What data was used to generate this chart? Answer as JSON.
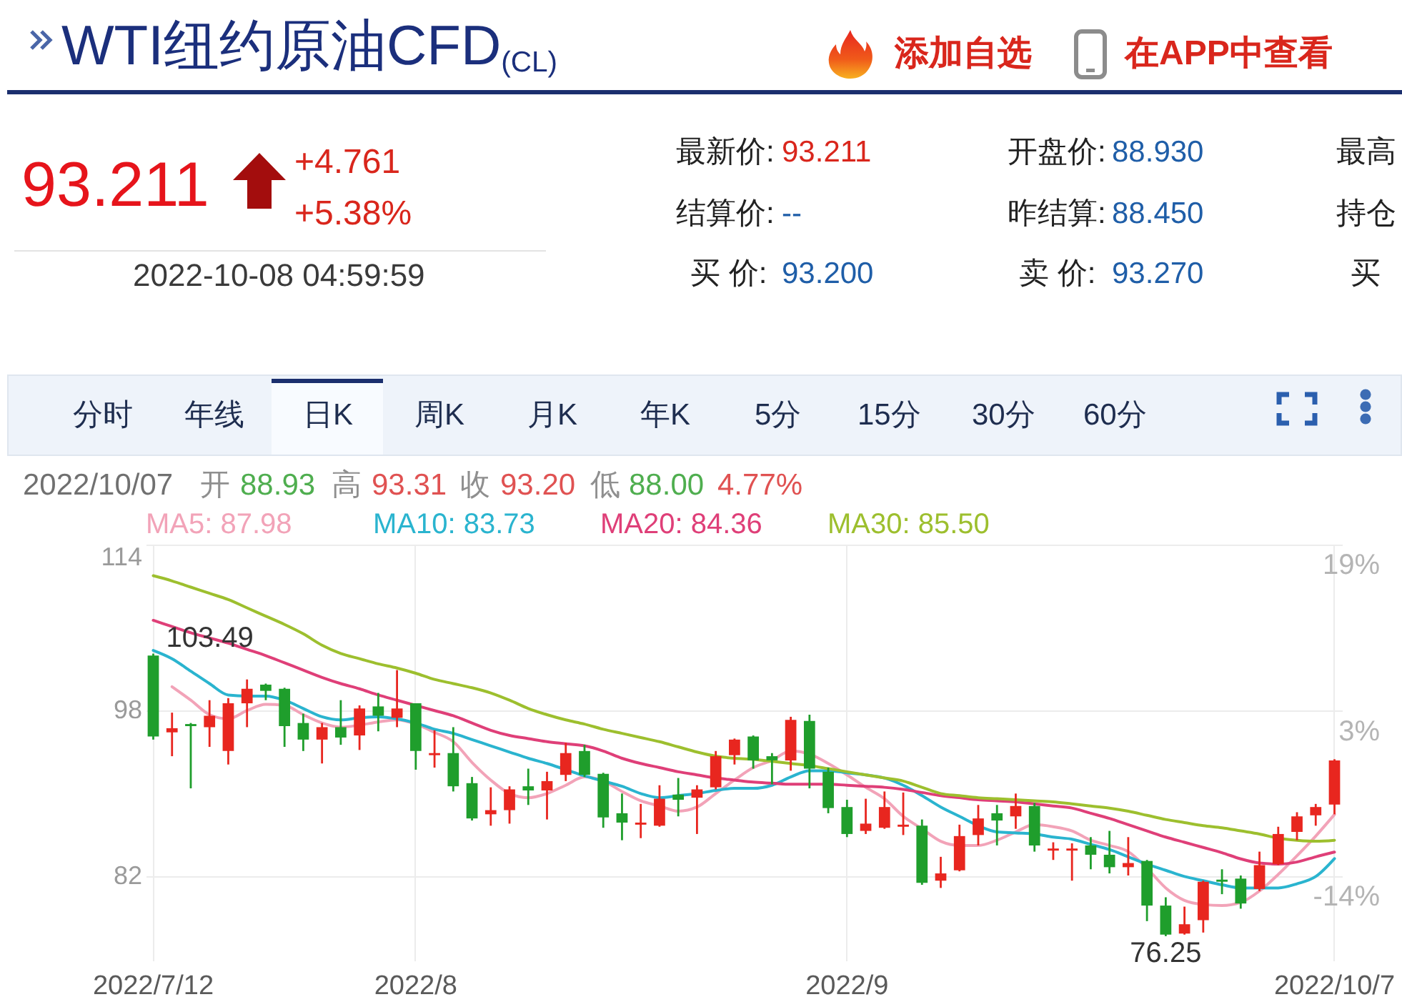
{
  "chart_data": {
    "type": "candlestick",
    "title": "WTI纽约原油CFD$_{(CL)}$",
    "annotations": [
      "93.211",
      "+4.761",
      "+5.38%",
      "2022-10-08 04:59:59",
      "最新价:",
      "93.211",
      "开盘价:",
      "88.930",
      "最高",
      "结算价:",
      "--",
      "昨结算:",
      "88.450",
      "持仓",
      "买 价:",
      "93.200",
      "卖 价:",
      "93.270",
      "买",
      "添加自选",
      "在APP中查看",
      "分时",
      "年线",
      "日K",
      "周K",
      "月K",
      "年K",
      "5分",
      "15分",
      "30分",
      "60分",
      "2022/10/07",
      "开",
      "88.93",
      "高",
      "93.31",
      "收",
      "93.20",
      "低",
      "88.00",
      "4.77%",
      {
        "text": "103.49",
        "x": "2022/7/12",
        "y": 103.49
      },
      {
        "text": "76.25",
        "y": 76.25
      }
    ],
    "categories": [
      "2022/7/12",
      null,
      null,
      null,
      null,
      null,
      null,
      null,
      null,
      null,
      null,
      null,
      null,
      null,
      "2022/8",
      null,
      null,
      null,
      null,
      null,
      null,
      null,
      null,
      null,
      null,
      null,
      null,
      null,
      null,
      null,
      null,
      null,
      null,
      null,
      null,
      null,
      null,
      "2022/9",
      null,
      null,
      null,
      null,
      null,
      null,
      null,
      null,
      null,
      null,
      null,
      null,
      null,
      null,
      null,
      null,
      null,
      null,
      null,
      null,
      null,
      null,
      null,
      null,
      null,
      "2022/10/7"
    ],
    "ohlc": [
      [
        103.3,
        103.49,
        95.2,
        95.5
      ],
      [
        95.9,
        97.8,
        93.6,
        96.3
      ],
      [
        96.7,
        96.8,
        90.5,
        96.5
      ],
      [
        96.4,
        99.0,
        94.5,
        97.5
      ],
      [
        94.1,
        99.2,
        92.8,
        98.7
      ],
      [
        98.7,
        101.0,
        96.4,
        100.1
      ],
      [
        100.5,
        100.6,
        99.0,
        99.9
      ],
      [
        100.1,
        100.2,
        94.5,
        96.5
      ],
      [
        96.8,
        97.7,
        94.1,
        95.2
      ],
      [
        95.2,
        96.8,
        92.9,
        96.4
      ],
      [
        96.4,
        99.0,
        94.7,
        95.4
      ],
      [
        95.6,
        98.5,
        94.2,
        98.2
      ],
      [
        98.4,
        99.7,
        96.0,
        97.5
      ],
      [
        97.3,
        101.9,
        96.4,
        98.2
      ],
      [
        98.7,
        98.7,
        92.3,
        94.1
      ],
      [
        93.7,
        96.1,
        92.5,
        93.9
      ],
      [
        93.9,
        96.4,
        90.2,
        90.7
      ],
      [
        91.0,
        91.6,
        87.4,
        87.6
      ],
      [
        88.0,
        90.6,
        86.9,
        88.4
      ],
      [
        88.4,
        90.7,
        87.1,
        90.4
      ],
      [
        90.7,
        92.4,
        88.9,
        90.3
      ],
      [
        90.3,
        92.1,
        87.5,
        91.2
      ],
      [
        91.8,
        94.9,
        91.2,
        93.9
      ],
      [
        94.1,
        94.7,
        91.6,
        91.8
      ],
      [
        91.9,
        92.0,
        86.7,
        87.7
      ],
      [
        88.1,
        90.0,
        85.5,
        87.2
      ],
      [
        87.0,
        89.0,
        85.7,
        87.2
      ],
      [
        86.9,
        90.8,
        86.8,
        89.5
      ],
      [
        89.9,
        91.5,
        87.8,
        89.4
      ],
      [
        89.6,
        90.8,
        86.1,
        90.4
      ],
      [
        90.6,
        94.1,
        90.4,
        93.6
      ],
      [
        93.7,
        95.3,
        92.8,
        95.2
      ],
      [
        95.5,
        95.6,
        92.4,
        93.2
      ],
      [
        93.6,
        93.9,
        90.9,
        93.2
      ],
      [
        93.2,
        97.4,
        92.2,
        97.1
      ],
      [
        97.0,
        97.6,
        90.5,
        92.4
      ],
      [
        92.1,
        92.5,
        88.1,
        88.6
      ],
      [
        88.7,
        89.4,
        85.8,
        86.1
      ],
      [
        86.4,
        89.5,
        86.1,
        87.1
      ],
      [
        86.7,
        90.2,
        86.6,
        88.7
      ],
      [
        86.8,
        90.1,
        86.0,
        87.0
      ],
      [
        86.9,
        87.5,
        81.2,
        81.4
      ],
      [
        81.6,
        83.9,
        80.9,
        82.3
      ],
      [
        82.6,
        87.0,
        82.5,
        85.9
      ],
      [
        86.0,
        88.9,
        85.0,
        87.6
      ],
      [
        88.1,
        88.9,
        85.0,
        87.4
      ],
      [
        87.8,
        90.0,
        86.6,
        88.8
      ],
      [
        88.8,
        89.1,
        84.4,
        85.0
      ],
      [
        84.5,
        85.3,
        83.6,
        84.7
      ],
      [
        84.5,
        85.2,
        81.6,
        84.7
      ],
      [
        85.0,
        85.8,
        82.7,
        84.1
      ],
      [
        84.1,
        86.4,
        82.3,
        82.9
      ],
      [
        82.9,
        85.8,
        82.1,
        83.3
      ],
      [
        83.5,
        83.6,
        77.7,
        79.2
      ],
      [
        79.2,
        80.0,
        76.25,
        76.4
      ],
      [
        76.5,
        79.1,
        76.4,
        77.4
      ],
      [
        77.8,
        81.6,
        76.6,
        81.5
      ],
      [
        81.7,
        82.7,
        80.3,
        81.5
      ],
      [
        81.8,
        82.1,
        78.9,
        79.4
      ],
      [
        80.8,
        84.4,
        80.6,
        83.1
      ],
      [
        83.2,
        86.8,
        83.1,
        86.1
      ],
      [
        86.3,
        88.2,
        85.5,
        87.8
      ],
      [
        87.9,
        89.0,
        86.9,
        88.7
      ],
      [
        88.93,
        93.31,
        88.0,
        93.2
      ]
    ],
    "colors": [
      "#1f9e2c",
      "#e8261f",
      "#1f9e2c",
      "#e8261f",
      "#e8261f",
      "#e8261f",
      "#1f9e2c",
      "#1f9e2c",
      "#1f9e2c",
      "#e8261f",
      "#1f9e2c",
      "#e8261f",
      "#1f9e2c",
      "#e8261f",
      "#1f9e2c",
      "#e8261f",
      "#1f9e2c",
      "#1f9e2c",
      "#e8261f",
      "#e8261f",
      "#1f9e2c",
      "#e8261f",
      "#e8261f",
      "#1f9e2c",
      "#1f9e2c",
      "#1f9e2c",
      "#e8261f",
      "#e8261f",
      "#1f9e2c",
      "#e8261f",
      "#e8261f",
      "#e8261f",
      "#1f9e2c",
      "#1f9e2c",
      "#e8261f",
      "#1f9e2c",
      "#1f9e2c",
      "#1f9e2c",
      "#e8261f",
      "#e8261f",
      "#e8261f",
      "#1f9e2c",
      "#e8261f",
      "#e8261f",
      "#e8261f",
      "#1f9e2c",
      "#e8261f",
      "#1f9e2c",
      "#e8261f",
      "#e8261f",
      "#1f9e2c",
      "#1f9e2c",
      "#e8261f",
      "#1f9e2c",
      "#1f9e2c",
      "#e8261f",
      "#e8261f",
      "#1f9e2c",
      "#1f9e2c",
      "#e8261f",
      "#e8261f",
      "#e8261f",
      "#e8261f",
      "#e8261f"
    ],
    "series": [
      {
        "name": "MA5: 87.98",
        "type": "line",
        "color": "#f2a3b8",
        "values": [
          null,
          100.3,
          99.0,
          97.6,
          97.2,
          98.0,
          98.6,
          98.5,
          97.6,
          96.8,
          96.4,
          96.6,
          96.9,
          97.1,
          96.7,
          95.9,
          95.0,
          93.0,
          91.3,
          90.0,
          89.6,
          90.0,
          90.8,
          91.6,
          91.2,
          90.2,
          89.3,
          88.8,
          88.3,
          88.7,
          90.0,
          91.3,
          92.5,
          93.2,
          94.1,
          93.8,
          92.9,
          91.8,
          90.6,
          89.5,
          87.8,
          86.6,
          85.4,
          85.0,
          85.0,
          85.5,
          86.3,
          87.0,
          86.8,
          86.4,
          85.5,
          85.0,
          84.4,
          82.8,
          80.9,
          79.7,
          79.3,
          79.2,
          79.5,
          80.6,
          82.2,
          84.0,
          85.9,
          87.98
        ]
      },
      {
        "name": "MA10: 83.73",
        "type": "line",
        "color": "#2ab4cf",
        "values": [
          103.8,
          103.0,
          101.8,
          100.6,
          99.5,
          99.4,
          99.4,
          99.0,
          98.2,
          97.4,
          97.1,
          97.3,
          97.4,
          97.2,
          96.8,
          96.2,
          95.8,
          95.2,
          94.6,
          94.0,
          93.4,
          92.9,
          92.3,
          91.7,
          91.2,
          90.7,
          90.0,
          89.6,
          89.8,
          90.0,
          90.3,
          90.5,
          90.5,
          90.8,
          91.6,
          92.2,
          92.2,
          92.0,
          91.8,
          91.5,
          90.8,
          89.8,
          88.7,
          87.8,
          86.9,
          86.3,
          86.2,
          86.1,
          85.8,
          85.6,
          85.1,
          84.6,
          83.9,
          83.2,
          82.6,
          82.0,
          81.6,
          81.2,
          80.9,
          80.9,
          80.9,
          81.3,
          82.0,
          83.73
        ]
      },
      {
        "name": "MA20: 84.36",
        "type": "line",
        "color": "#df3f78",
        "values": [
          106.7,
          106.1,
          105.5,
          105.0,
          104.5,
          103.9,
          103.3,
          102.6,
          101.9,
          101.2,
          100.6,
          100.1,
          99.5,
          99.0,
          98.5,
          98.0,
          97.5,
          96.8,
          96.1,
          95.6,
          95.3,
          95.0,
          94.8,
          94.6,
          94.1,
          93.4,
          92.9,
          92.5,
          92.1,
          91.8,
          91.5,
          91.3,
          91.1,
          91.0,
          90.9,
          90.9,
          90.9,
          90.8,
          90.7,
          90.6,
          90.4,
          90.1,
          89.8,
          89.6,
          89.4,
          89.3,
          89.2,
          89.0,
          88.8,
          88.6,
          88.1,
          87.6,
          87.0,
          86.4,
          85.8,
          85.3,
          84.8,
          84.3,
          83.7,
          83.3,
          83.2,
          83.4,
          83.9,
          84.36
        ]
      },
      {
        "name": "MA30: 85.50",
        "type": "line",
        "color": "#9dbf2e",
        "values": [
          111.0,
          110.5,
          109.9,
          109.3,
          108.7,
          107.9,
          107.1,
          106.3,
          105.4,
          104.3,
          103.5,
          103.0,
          102.5,
          102.1,
          101.6,
          101.0,
          100.6,
          100.2,
          99.7,
          99.0,
          98.2,
          97.6,
          97.1,
          96.7,
          96.2,
          95.8,
          95.4,
          95.0,
          94.5,
          94.0,
          93.6,
          93.4,
          93.3,
          93.1,
          92.9,
          92.7,
          92.4,
          92.1,
          91.8,
          91.5,
          91.2,
          90.6,
          90.0,
          89.8,
          89.6,
          89.5,
          89.4,
          89.3,
          89.2,
          89.0,
          88.8,
          88.6,
          88.3,
          87.9,
          87.5,
          87.2,
          86.9,
          86.7,
          86.4,
          86.1,
          85.7,
          85.5,
          85.4,
          85.5
        ]
      }
    ],
    "ylim": [
      73.9,
      114
    ],
    "yticks": [
      114,
      98,
      82
    ],
    "y2lim": [
      -22.6,
      19.4
    ],
    "y2ticks": [
      {
        "value": 19.4,
        "label": "19%"
      },
      {
        "value": 2.6,
        "label": "3%"
      },
      {
        "value": -14.1,
        "label": "-14%"
      }
    ],
    "grid": true,
    "legend": "top left"
  }
}
